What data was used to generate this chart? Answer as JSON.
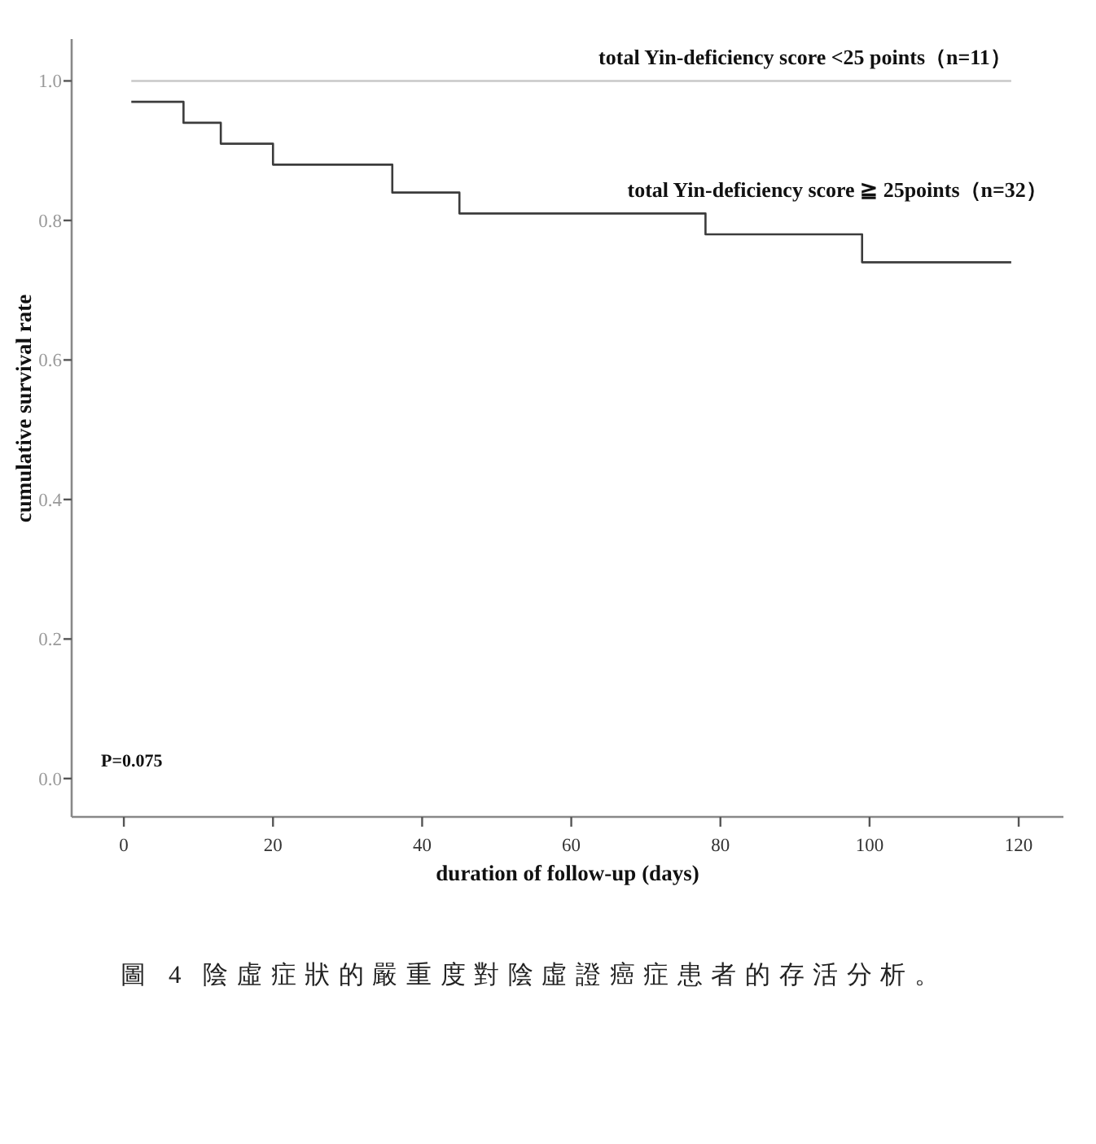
{
  "chart_data": {
    "type": "step",
    "xlabel": "duration of follow-up (days)",
    "ylabel": "cumulative survival rate",
    "series": [
      {
        "name": "total Yin-deficiency score <25 points（n=11）",
        "color": "#c8c8c8",
        "x": [
          1,
          119
        ],
        "values": [
          1.0,
          1.0
        ]
      },
      {
        "name": "total Yin-deficiency score ≧ 25points（n=32）",
        "color": "#3c3c3c",
        "x": [
          1,
          8,
          13,
          20,
          36,
          45,
          78,
          99,
          119
        ],
        "values": [
          0.97,
          0.94,
          0.91,
          0.88,
          0.84,
          0.81,
          0.78,
          0.74,
          0.74
        ]
      }
    ],
    "xlim": [
      -7,
      126
    ],
    "ylim": [
      -0.055,
      1.06
    ],
    "xticks": [
      0,
      20,
      40,
      60,
      80,
      100,
      120
    ],
    "yticks": [
      {
        "value": 0,
        "label": "0.0"
      },
      0.2,
      0.4,
      0.6,
      0.8,
      {
        "value": 1,
        "label": "1.0"
      }
    ],
    "annotations": [
      "P=0.075",
      "圖 4 陰虛症狀的嚴重度對陰虛證癌症患者的存活分析。"
    ]
  }
}
